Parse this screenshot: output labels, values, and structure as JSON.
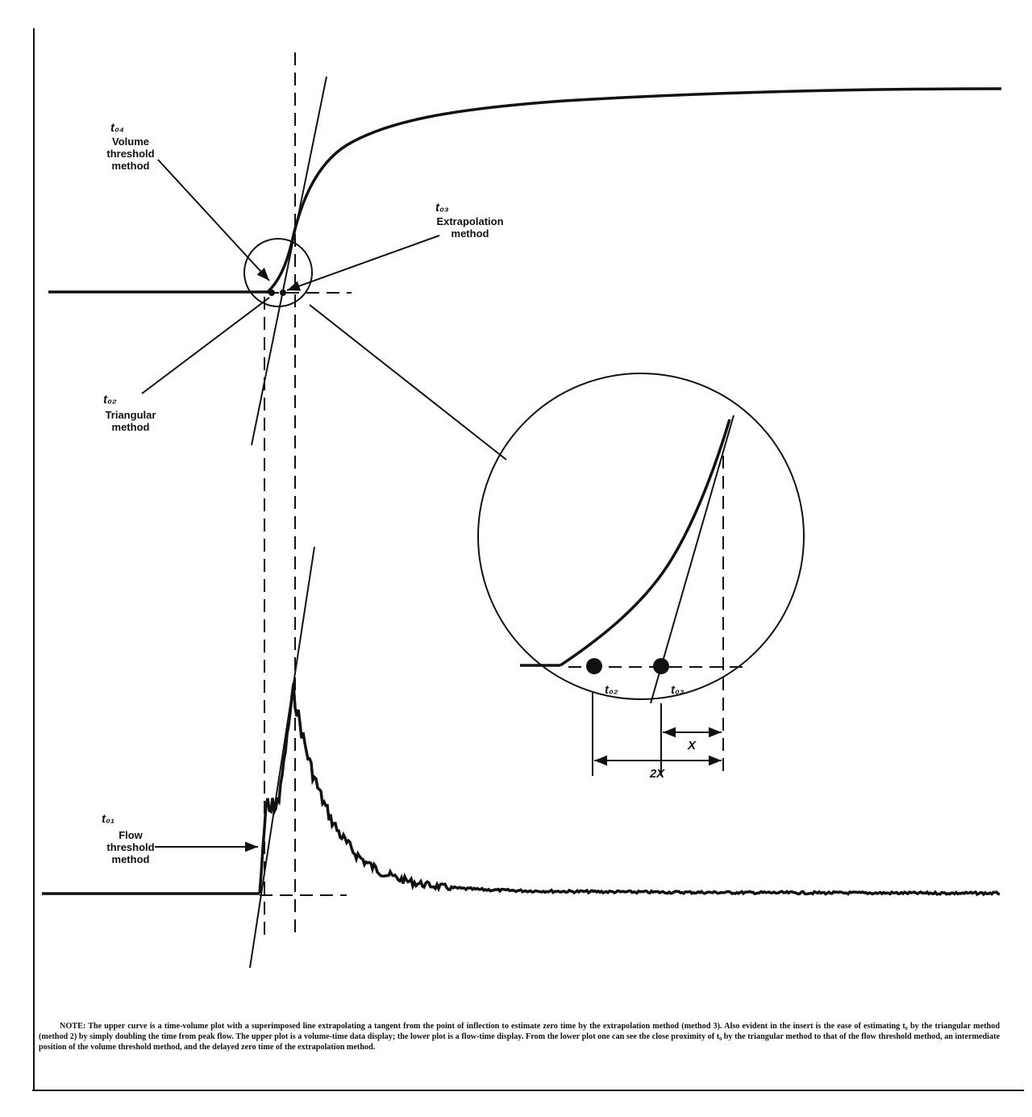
{
  "labels": {
    "volume_threshold": {
      "symbol": "t₀₄",
      "lines": [
        "Volume",
        "threshold",
        "method"
      ]
    },
    "extrapolation": {
      "symbol": "t₀₃",
      "lines": [
        "Extrapolation",
        "method"
      ]
    },
    "triangular": {
      "symbol": "t₀₂",
      "lines": [
        "Triangular",
        "method"
      ]
    },
    "flow_threshold": {
      "symbol": "t₀₁",
      "lines": [
        "Flow",
        "threshold",
        "method"
      ]
    }
  },
  "insert": {
    "t02": "t₀₂",
    "t03": "t₀₃",
    "x": "X",
    "two_x": "2X"
  },
  "note": "NOTE: The upper curve is a time-volume plot with a superimposed line extrapolating a tangent from the point of inflection to estimate zero time by the extrapolation method (method 3). Also evident in the insert is the ease of estimating t₀ by the triangular method (method 2) by simply doubling the time from peak flow. The upper plot is a volume-time data display; the lower plot is a flow-time display. From the lower plot one can see the close proximity of t₀ by the triangular method to that of the flow threshold method, an intermediate position of the volume threshold method, and the delayed zero time of the extrapolation method."
}
